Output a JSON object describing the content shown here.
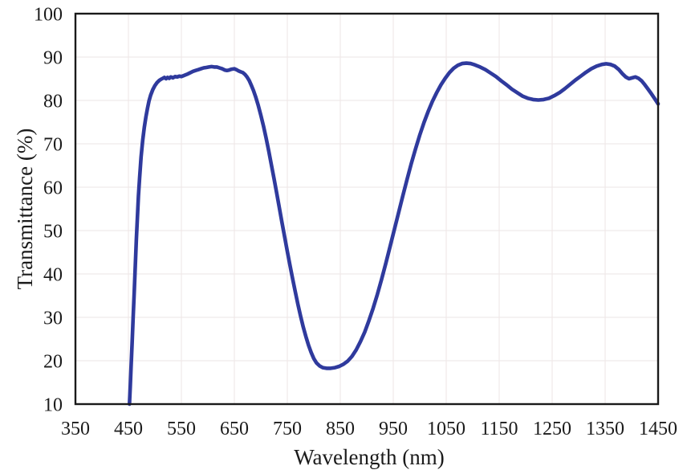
{
  "figure": {
    "background": "#ffffff",
    "text_color": "#1b1b1b"
  },
  "chart_data": {
    "type": "line",
    "title": "",
    "xlabel": "Wavelength (nm)",
    "ylabel": "Transmittance (%)",
    "xlim": [
      350,
      1450
    ],
    "ylim": [
      10,
      100
    ],
    "x_ticks": [
      350,
      450,
      550,
      650,
      750,
      850,
      950,
      1050,
      1150,
      1250,
      1350,
      1450
    ],
    "y_ticks": [
      10,
      20,
      30,
      40,
      50,
      60,
      70,
      80,
      90,
      100
    ],
    "grid": true,
    "grid_color": "#efe9e9",
    "axis_color": "#1a1a1a",
    "legend": "none",
    "series": [
      {
        "name": "Transmittance",
        "color": "#2f3a9d",
        "line_width": 4.6,
        "points": [
          [
            452,
            10
          ],
          [
            453.5,
            14
          ],
          [
            455,
            18.5
          ],
          [
            457,
            24
          ],
          [
            459,
            30
          ],
          [
            461,
            36
          ],
          [
            463,
            42
          ],
          [
            465,
            48
          ],
          [
            467,
            53
          ],
          [
            469,
            58
          ],
          [
            471,
            62
          ],
          [
            474,
            67
          ],
          [
            477,
            70.8
          ],
          [
            480,
            73.8
          ],
          [
            483,
            76.2
          ],
          [
            486,
            78.2
          ],
          [
            489,
            79.9
          ],
          [
            492,
            81.2
          ],
          [
            496,
            82.5
          ],
          [
            500,
            83.4
          ],
          [
            504,
            84.1
          ],
          [
            508,
            84.6
          ],
          [
            512,
            84.9
          ],
          [
            515,
            85.1
          ],
          [
            518,
            85.3
          ],
          [
            521,
            85.0
          ],
          [
            524,
            85.3
          ],
          [
            527,
            85.1
          ],
          [
            530,
            85.4
          ],
          [
            534,
            85.2
          ],
          [
            538,
            85.5
          ],
          [
            542,
            85.4
          ],
          [
            546,
            85.6
          ],
          [
            550,
            85.5
          ],
          [
            554,
            85.7
          ],
          [
            558,
            85.9
          ],
          [
            562,
            86.1
          ],
          [
            567,
            86.4
          ],
          [
            572,
            86.7
          ],
          [
            577,
            86.9
          ],
          [
            582,
            87.1
          ],
          [
            587,
            87.3
          ],
          [
            592,
            87.5
          ],
          [
            597,
            87.6
          ],
          [
            602,
            87.7
          ],
          [
            607,
            87.8
          ],
          [
            612,
            87.7
          ],
          [
            617,
            87.7
          ],
          [
            622,
            87.5
          ],
          [
            627,
            87.3
          ],
          [
            632,
            87.0
          ],
          [
            636,
            86.9
          ],
          [
            640,
            87.0
          ],
          [
            645,
            87.2
          ],
          [
            650,
            87.3
          ],
          [
            654,
            87.1
          ],
          [
            658,
            86.8
          ],
          [
            662,
            86.6
          ],
          [
            666,
            86.4
          ],
          [
            670,
            86.0
          ],
          [
            674,
            85.4
          ],
          [
            678,
            84.6
          ],
          [
            682,
            83.5
          ],
          [
            686,
            82.3
          ],
          [
            690,
            80.9
          ],
          [
            695,
            78.9
          ],
          [
            700,
            76.6
          ],
          [
            705,
            74.1
          ],
          [
            710,
            71.3
          ],
          [
            715,
            68.3
          ],
          [
            720,
            65.1
          ],
          [
            725,
            61.9
          ],
          [
            730,
            58.6
          ],
          [
            735,
            55.2
          ],
          [
            740,
            51.8
          ],
          [
            745,
            48.5
          ],
          [
            750,
            45.2
          ],
          [
            755,
            42.0
          ],
          [
            760,
            38.9
          ],
          [
            765,
            35.9
          ],
          [
            770,
            33.0
          ],
          [
            775,
            30.3
          ],
          [
            780,
            27.8
          ],
          [
            785,
            25.6
          ],
          [
            790,
            23.6
          ],
          [
            795,
            21.9
          ],
          [
            800,
            20.5
          ],
          [
            805,
            19.5
          ],
          [
            811,
            18.8
          ],
          [
            817,
            18.4
          ],
          [
            824,
            18.25
          ],
          [
            832,
            18.25
          ],
          [
            840,
            18.4
          ],
          [
            848,
            18.7
          ],
          [
            856,
            19.2
          ],
          [
            864,
            19.9
          ],
          [
            872,
            21.0
          ],
          [
            880,
            22.5
          ],
          [
            888,
            24.4
          ],
          [
            896,
            26.6
          ],
          [
            904,
            29.2
          ],
          [
            912,
            32.1
          ],
          [
            920,
            35.3
          ],
          [
            928,
            38.8
          ],
          [
            936,
            42.5
          ],
          [
            944,
            46.3
          ],
          [
            952,
            50.2
          ],
          [
            960,
            54.1
          ],
          [
            968,
            58.0
          ],
          [
            976,
            61.8
          ],
          [
            984,
            65.4
          ],
          [
            992,
            68.8
          ],
          [
            1000,
            72.0
          ],
          [
            1008,
            74.9
          ],
          [
            1016,
            77.5
          ],
          [
            1024,
            79.8
          ],
          [
            1032,
            81.8
          ],
          [
            1040,
            83.6
          ],
          [
            1048,
            85.1
          ],
          [
            1056,
            86.4
          ],
          [
            1064,
            87.4
          ],
          [
            1072,
            88.1
          ],
          [
            1080,
            88.5
          ],
          [
            1088,
            88.6
          ],
          [
            1096,
            88.5
          ],
          [
            1104,
            88.2
          ],
          [
            1114,
            87.7
          ],
          [
            1124,
            87.1
          ],
          [
            1134,
            86.3
          ],
          [
            1144,
            85.5
          ],
          [
            1154,
            84.5
          ],
          [
            1164,
            83.6
          ],
          [
            1174,
            82.6
          ],
          [
            1184,
            81.8
          ],
          [
            1194,
            81.0
          ],
          [
            1204,
            80.5
          ],
          [
            1214,
            80.2
          ],
          [
            1224,
            80.1
          ],
          [
            1234,
            80.2
          ],
          [
            1244,
            80.5
          ],
          [
            1254,
            81.1
          ],
          [
            1264,
            81.8
          ],
          [
            1274,
            82.7
          ],
          [
            1284,
            83.7
          ],
          [
            1294,
            84.7
          ],
          [
            1304,
            85.6
          ],
          [
            1314,
            86.5
          ],
          [
            1324,
            87.3
          ],
          [
            1334,
            87.9
          ],
          [
            1344,
            88.3
          ],
          [
            1352,
            88.45
          ],
          [
            1360,
            88.3
          ],
          [
            1368,
            87.9
          ],
          [
            1376,
            87.1
          ],
          [
            1383,
            86.1
          ],
          [
            1389,
            85.4
          ],
          [
            1395,
            85.0
          ],
          [
            1401,
            85.2
          ],
          [
            1407,
            85.4
          ],
          [
            1413,
            85.1
          ],
          [
            1419,
            84.5
          ],
          [
            1425,
            83.6
          ],
          [
            1431,
            82.6
          ],
          [
            1437,
            81.6
          ],
          [
            1443,
            80.5
          ],
          [
            1450,
            79.2
          ]
        ]
      }
    ]
  }
}
